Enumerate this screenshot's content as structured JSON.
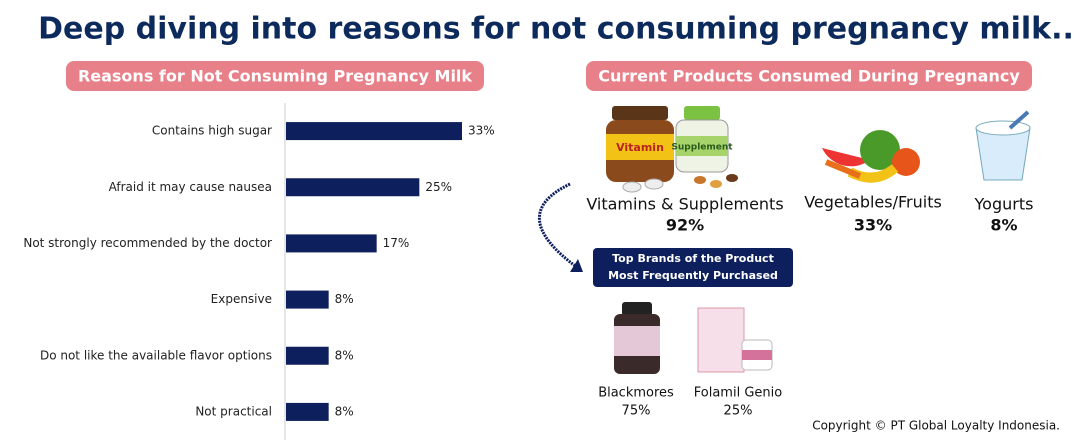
{
  "title": "Deep diving into reasons for not consuming pregnancy milk..",
  "chart_data": {
    "type": "bar",
    "orientation": "horizontal",
    "title": "Reasons for Not Consuming Pregnancy Milk",
    "categories": [
      "Contains high sugar",
      "Afraid it may cause nausea",
      "Not strongly recommended by the doctor",
      "Expensive",
      "Do not like the available flavor options",
      "Not practical"
    ],
    "values": [
      33,
      25,
      17,
      8,
      8,
      8
    ],
    "value_labels": [
      "33%",
      "25%",
      "17%",
      "8%",
      "8%",
      "8%"
    ],
    "color": "#0d1f5c"
  },
  "products": {
    "title": "Current Products Consumed During Pregnancy",
    "icon_labels": [
      "Vitamin",
      "Supplement"
    ],
    "items": [
      {
        "name": "Vitamins & Supplements",
        "share": "92%"
      },
      {
        "name": "Vegetables/Fruits",
        "share": "33%"
      },
      {
        "name": "Yogurts",
        "share": "8%"
      }
    ]
  },
  "brands": {
    "title_lines": [
      "Top Brands of the Product",
      "Most Frequently Purchased"
    ],
    "items": [
      {
        "name": "Blackmores",
        "share": "75%"
      },
      {
        "name": "Folamil Genio",
        "share": "25%"
      }
    ]
  },
  "copyright": "Copyright © PT Global Loyalty Indonesia."
}
